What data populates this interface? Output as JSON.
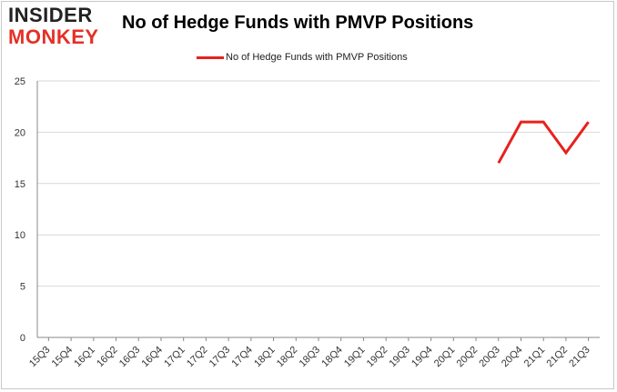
{
  "logo": {
    "line1": "INSIDER",
    "line2": "MONKEY"
  },
  "colors": {
    "series": "#e8211c",
    "grid": "#d9d9d9",
    "axis": "#888888"
  },
  "chart_data": {
    "type": "line",
    "title": "No of Hedge Funds with PMVP Positions",
    "xlabel": "",
    "ylabel": "",
    "ylim": [
      0,
      25
    ],
    "yticks": [
      0,
      5,
      10,
      15,
      20,
      25
    ],
    "grid": true,
    "legend_position": "top-center",
    "categories": [
      "15Q3",
      "15Q4",
      "16Q1",
      "16Q2",
      "16Q3",
      "16Q4",
      "17Q1",
      "17Q2",
      "17Q3",
      "17Q4",
      "18Q1",
      "18Q2",
      "18Q3",
      "18Q4",
      "19Q1",
      "19Q2",
      "19Q3",
      "19Q4",
      "20Q1",
      "20Q2",
      "20Q3",
      "20Q4",
      "21Q1",
      "21Q2",
      "21Q3"
    ],
    "series": [
      {
        "name": "No of Hedge Funds with PMVP Positions",
        "values": [
          null,
          null,
          null,
          null,
          null,
          null,
          null,
          null,
          null,
          null,
          null,
          null,
          null,
          null,
          null,
          null,
          null,
          null,
          null,
          null,
          17,
          21,
          21,
          18,
          21
        ]
      }
    ]
  }
}
